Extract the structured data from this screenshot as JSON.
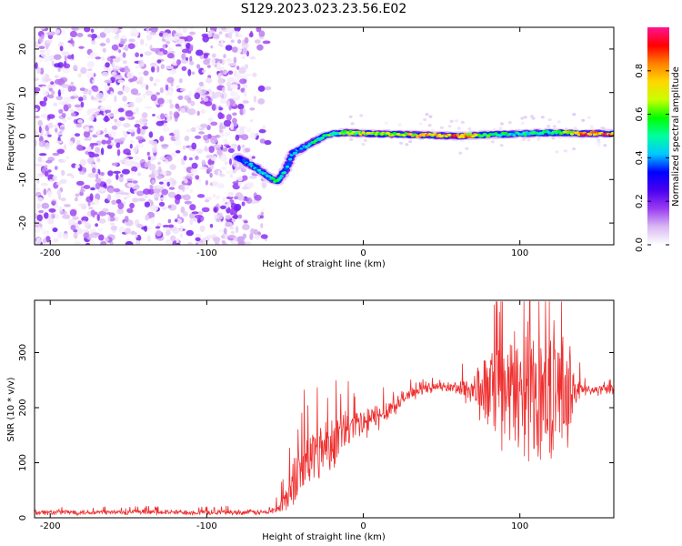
{
  "title": "S129.2023.023.23.56.E02",
  "chart_data": [
    {
      "type": "heatmap",
      "xlabel": "Height of straight line (km)",
      "ylabel": "Frequency (Hz)",
      "xlim": [
        -210,
        160
      ],
      "ylim": [
        -25,
        25
      ],
      "xticks": [
        -200,
        -100,
        0,
        100
      ],
      "yticks": [
        -20,
        -10,
        0,
        10,
        20
      ],
      "colorbar": {
        "label": "Normalized spectral amplitude",
        "range": [
          0.0,
          1.0
        ],
        "ticks": [
          0.0,
          0.2,
          0.4,
          0.6,
          0.8
        ],
        "colors": [
          "#ffffff",
          "#d9b8f2",
          "#9a3bf2",
          "#4a00f0",
          "#0000ff",
          "#00c8ff",
          "#00ffa0",
          "#00ff00",
          "#c8ff00",
          "#ffd700",
          "#ff8000",
          "#ff0000",
          "#ff1493"
        ]
      },
      "noise_region": {
        "x": [
          -210,
          -60
        ],
        "y": [
          -25,
          25
        ]
      },
      "signal_track": {
        "x": [
          -80,
          -70,
          -62,
          -55,
          -50,
          -45,
          -40,
          -35,
          -30,
          -25,
          -20,
          -10,
          0,
          20,
          40,
          60,
          80,
          100,
          120,
          140,
          160
        ],
        "frequency": [
          -5,
          -7,
          -9,
          -10.5,
          -8,
          -4,
          -3,
          -2,
          -1,
          0,
          0.5,
          0.8,
          0.6,
          0.4,
          0.2,
          0,
          0.3,
          0.5,
          0.8,
          0.6,
          0.6
        ],
        "amplitude": [
          0.3,
          0.45,
          0.5,
          0.55,
          0.5,
          0.4,
          0.45,
          0.5,
          0.55,
          0.55,
          0.6,
          0.6,
          0.7,
          0.7,
          0.8,
          0.9,
          0.6,
          0.5,
          0.55,
          0.9,
          0.9
        ]
      }
    },
    {
      "type": "line",
      "xlabel": "Height of straight line (km)",
      "ylabel": "SNR (10 * v/v)",
      "xlim": [
        -210,
        160
      ],
      "ylim": [
        0,
        395
      ],
      "xticks": [
        -200,
        -100,
        0,
        100
      ],
      "yticks": [
        0,
        100,
        200,
        300
      ],
      "color": "#ee3030",
      "envelope": {
        "x": [
          -210,
          -60,
          -55,
          -50,
          -45,
          -40,
          -30,
          -20,
          -10,
          0,
          10,
          20,
          30,
          40,
          50,
          60,
          70,
          80,
          90,
          100,
          110,
          120,
          130,
          140,
          150,
          160
        ],
        "baseline": [
          10,
          10,
          18,
          30,
          60,
          90,
          120,
          140,
          160,
          170,
          185,
          205,
          225,
          235,
          238,
          236,
          232,
          230,
          228,
          228,
          230,
          232,
          232,
          232,
          232,
          232
        ],
        "spread": [
          6,
          6,
          12,
          30,
          60,
          70,
          70,
          60,
          50,
          40,
          30,
          20,
          15,
          10,
          10,
          15,
          45,
          90,
          130,
          140,
          140,
          150,
          120,
          12,
          12,
          12
        ]
      }
    }
  ]
}
